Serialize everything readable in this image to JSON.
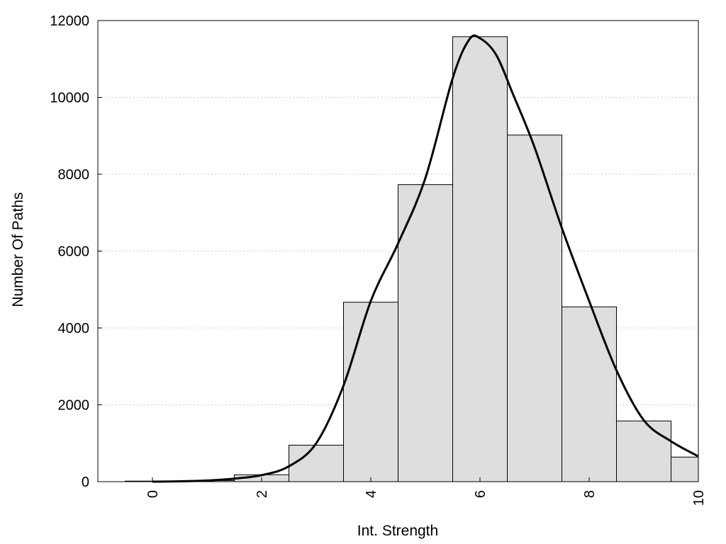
{
  "chart_data": {
    "type": "bar",
    "title": "",
    "xlabel": "Int. Strength",
    "ylabel": "Number Of Paths",
    "xlim": [
      -1,
      10
    ],
    "ylim": [
      0,
      12000
    ],
    "x_ticks": [
      0,
      2,
      4,
      6,
      8,
      10
    ],
    "y_ticks": [
      0,
      2000,
      4000,
      6000,
      8000,
      10000,
      12000
    ],
    "grid": "horizontal dotted",
    "bar_width": 1,
    "categories": [
      0,
      1,
      2,
      3,
      4,
      5,
      6,
      7,
      8,
      9,
      10
    ],
    "values": [
      15,
      30,
      180,
      950,
      4670,
      7730,
      11580,
      9020,
      4550,
      1580,
      640
    ],
    "density_curve": {
      "x": [
        0,
        0.5,
        1,
        1.5,
        2,
        2.5,
        3,
        3.5,
        4,
        4.5,
        5,
        5.5,
        5.8,
        6,
        6.3,
        6.6,
        7,
        7.5,
        8,
        8.5,
        9,
        9.5,
        10
      ],
      "y": [
        0,
        10,
        30,
        80,
        170,
        400,
        1000,
        2500,
        4700,
        6200,
        7900,
        10500,
        11500,
        11540,
        11100,
        10100,
        8700,
        6600,
        4700,
        2900,
        1600,
        1050,
        660
      ]
    },
    "colors": {
      "bar_fill": "#dedede",
      "bar_stroke": "#000000",
      "curve": "#000000",
      "grid": "#cccccc"
    }
  }
}
